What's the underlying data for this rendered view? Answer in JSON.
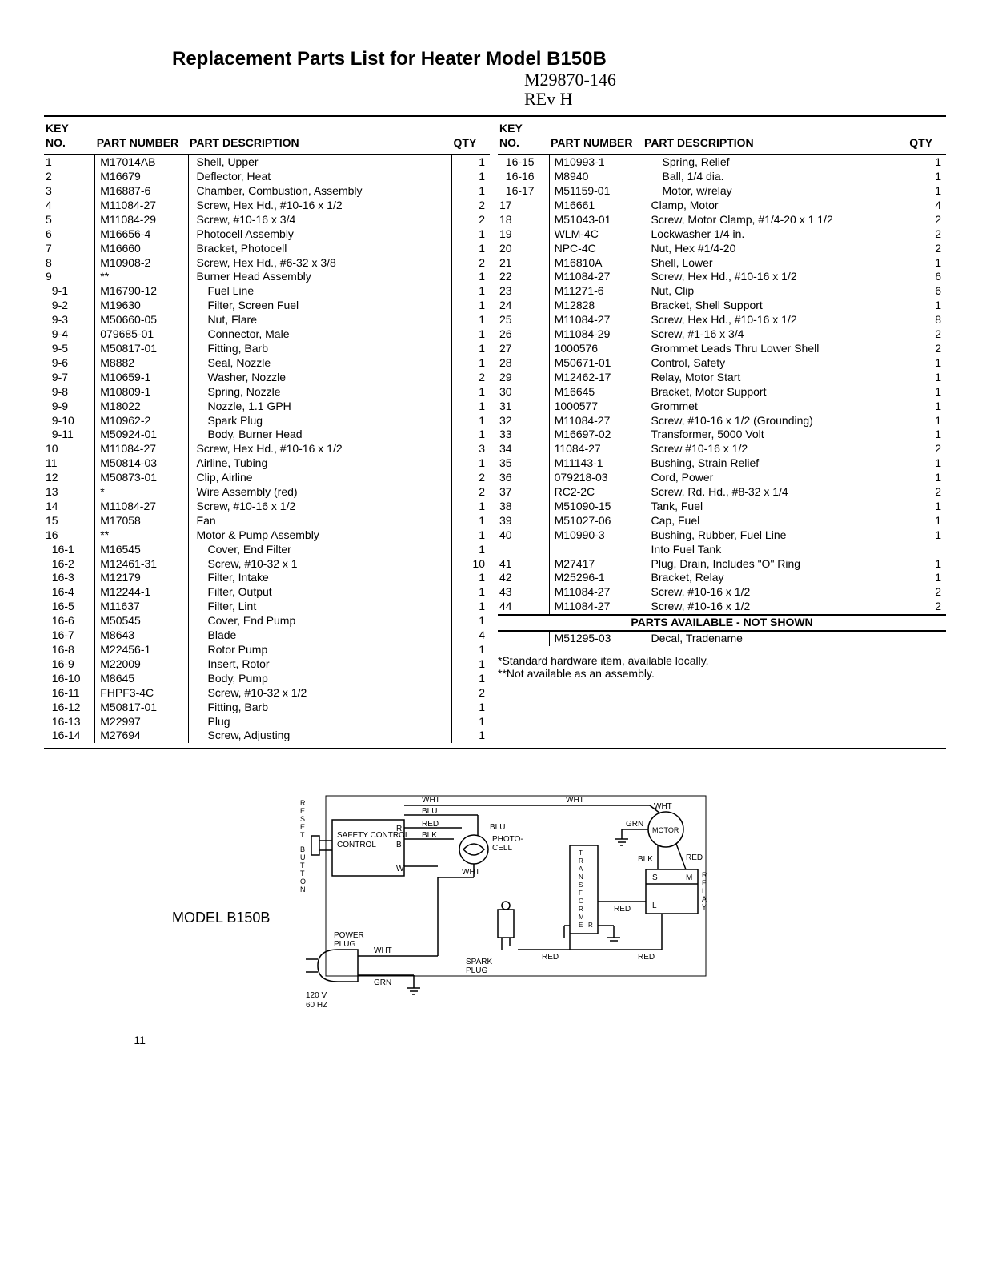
{
  "title": "Replacement Parts List for Heater Model B150B",
  "handwritten_line1": "M29870-146",
  "handwritten_line2": "REv H",
  "headers": {
    "key": "KEY\nNO.",
    "pn": "PART NUMBER",
    "desc": "PART DESCRIPTION",
    "qty": "QTY"
  },
  "left": [
    {
      "k": "1",
      "p": "M17014AB",
      "d": "Shell, Upper",
      "q": "1"
    },
    {
      "k": "2",
      "p": "M16679",
      "d": "Deflector, Heat",
      "q": "1"
    },
    {
      "k": "3",
      "p": "M16887-6",
      "d": "Chamber, Combustion, Assembly",
      "q": "1"
    },
    {
      "k": "4",
      "p": "M11084-27",
      "d": "Screw, Hex Hd., #10-16 x 1/2",
      "q": "2"
    },
    {
      "k": "5",
      "p": "M11084-29",
      "d": "Screw, #10-16 x 3/4",
      "q": "2"
    },
    {
      "k": "6",
      "p": "M16656-4",
      "d": "Photocell Assembly",
      "q": "1"
    },
    {
      "k": "7",
      "p": "M16660",
      "d": "Bracket, Photocell",
      "q": "1"
    },
    {
      "k": "8",
      "p": "M10908-2",
      "d": "Screw, Hex Hd., #6-32 x 3/8",
      "q": "2"
    },
    {
      "k": "9",
      "p": "**",
      "d": "Burner Head Assembly",
      "q": "1"
    },
    {
      "k": "9-1",
      "p": "M16790-12",
      "d": "Fuel Line",
      "q": "1",
      "i": 1
    },
    {
      "k": "9-2",
      "p": "M19630",
      "d": "Filter, Screen Fuel",
      "q": "1",
      "i": 1
    },
    {
      "k": "9-3",
      "p": "M50660-05",
      "d": "Nut, Flare",
      "q": "1",
      "i": 1
    },
    {
      "k": "9-4",
      "p": "079685-01",
      "d": "Connector, Male",
      "q": "1",
      "i": 1
    },
    {
      "k": "9-5",
      "p": "M50817-01",
      "d": "Fitting, Barb",
      "q": "1",
      "i": 1
    },
    {
      "k": "9-6",
      "p": "M8882",
      "d": "Seal, Nozzle",
      "q": "1",
      "i": 1
    },
    {
      "k": "9-7",
      "p": "M10659-1",
      "d": "Washer, Nozzle",
      "q": "2",
      "i": 1
    },
    {
      "k": "9-8",
      "p": "M10809-1",
      "d": "Spring, Nozzle",
      "q": "1",
      "i": 1
    },
    {
      "k": "9-9",
      "p": "M18022",
      "d": "Nozzle, 1.1 GPH",
      "q": "1",
      "i": 1
    },
    {
      "k": "9-10",
      "p": "M10962-2",
      "d": "Spark Plug",
      "q": "1",
      "i": 1
    },
    {
      "k": "9-11",
      "p": "M50924-01",
      "d": "Body, Burner Head",
      "q": "1",
      "i": 1
    },
    {
      "k": "10",
      "p": "M11084-27",
      "d": "Screw, Hex Hd., #10-16 x 1/2",
      "q": "3"
    },
    {
      "k": "11",
      "p": "M50814-03",
      "d": "Airline, Tubing",
      "q": "1"
    },
    {
      "k": "12",
      "p": "M50873-01",
      "d": "Clip, Airline",
      "q": "2"
    },
    {
      "k": "13",
      "p": "*",
      "d": "Wire Assembly (red)",
      "q": "2"
    },
    {
      "k": "14",
      "p": "M11084-27",
      "d": "Screw, #10-16 x 1/2",
      "q": "1"
    },
    {
      "k": "15",
      "p": "M17058",
      "d": "Fan",
      "q": "1"
    },
    {
      "k": "16",
      "p": "**",
      "d": "Motor & Pump Assembly",
      "q": "1"
    },
    {
      "k": "16-1",
      "p": "M16545",
      "d": "Cover, End Filter",
      "q": "1",
      "i": 1
    },
    {
      "k": "16-2",
      "p": "M12461-31",
      "d": "Screw, #10-32 x 1",
      "q": "10",
      "i": 1
    },
    {
      "k": "16-3",
      "p": "M12179",
      "d": "Filter, Intake",
      "q": "1",
      "i": 1
    },
    {
      "k": "16-4",
      "p": "M12244-1",
      "d": "Filter, Output",
      "q": "1",
      "i": 1
    },
    {
      "k": "16-5",
      "p": "M11637",
      "d": "Filter, Lint",
      "q": "1",
      "i": 1
    },
    {
      "k": "16-6",
      "p": "M50545",
      "d": "Cover, End Pump",
      "q": "1",
      "i": 1
    },
    {
      "k": "16-7",
      "p": "M8643",
      "d": "Blade",
      "q": "4",
      "i": 1
    },
    {
      "k": "16-8",
      "p": "M22456-1",
      "d": "Rotor Pump",
      "q": "1",
      "i": 1
    },
    {
      "k": "16-9",
      "p": "M22009",
      "d": "Insert, Rotor",
      "q": "1",
      "i": 1
    },
    {
      "k": "16-10",
      "p": "M8645",
      "d": "Body, Pump",
      "q": "1",
      "i": 1
    },
    {
      "k": "16-11",
      "p": "FHPF3-4C",
      "d": "Screw, #10-32 x 1/2",
      "q": "2",
      "i": 1
    },
    {
      "k": "16-12",
      "p": "M50817-01",
      "d": "Fitting, Barb",
      "q": "1",
      "i": 1
    },
    {
      "k": "16-13",
      "p": "M22997",
      "d": "Plug",
      "q": "1",
      "i": 1
    },
    {
      "k": "16-14",
      "p": "M27694",
      "d": "Screw, Adjusting",
      "q": "1",
      "i": 1
    }
  ],
  "right": [
    {
      "k": "16-15",
      "p": "M10993-1",
      "d": "Spring, Relief",
      "q": "1",
      "i": 1
    },
    {
      "k": "16-16",
      "p": "M8940",
      "d": "Ball, 1/4 dia.",
      "q": "1",
      "i": 1
    },
    {
      "k": "16-17",
      "p": "M51159-01",
      "d": "Motor, w/relay",
      "q": "1",
      "i": 1
    },
    {
      "k": "17",
      "p": "M16661",
      "d": "Clamp, Motor",
      "q": "4"
    },
    {
      "k": "18",
      "p": "M51043-01",
      "d": "Screw, Motor Clamp, #1/4-20 x 1 1/2",
      "q": "2"
    },
    {
      "k": "19",
      "p": "WLM-4C",
      "d": "Lockwasher 1/4 in.",
      "q": "2"
    },
    {
      "k": "20",
      "p": "NPC-4C",
      "d": "Nut, Hex #1/4-20",
      "q": "2"
    },
    {
      "k": "21",
      "p": "M16810A",
      "d": "Shell, Lower",
      "q": "1"
    },
    {
      "k": "22",
      "p": "M11084-27",
      "d": "Screw, Hex Hd., #10-16 x 1/2",
      "q": "6"
    },
    {
      "k": "23",
      "p": "M11271-6",
      "d": "Nut, Clip",
      "q": "6"
    },
    {
      "k": "24",
      "p": "M12828",
      "d": "Bracket, Shell Support",
      "q": "1"
    },
    {
      "k": "25",
      "p": "M11084-27",
      "d": "Screw, Hex Hd., #10-16 x 1/2",
      "q": "8"
    },
    {
      "k": "26",
      "p": "M11084-29",
      "d": "Screw, #1-16 x 3/4",
      "q": "2"
    },
    {
      "k": "27",
      "p": "1000576",
      "d": "Grommet Leads Thru Lower Shell",
      "q": "2"
    },
    {
      "k": "28",
      "p": "M50671-01",
      "d": "Control, Safety",
      "q": "1"
    },
    {
      "k": "29",
      "p": "M12462-17",
      "d": "Relay, Motor Start",
      "q": "1"
    },
    {
      "k": "30",
      "p": "M16645",
      "d": "Bracket, Motor Support",
      "q": "1"
    },
    {
      "k": "31",
      "p": "1000577",
      "d": "Grommet",
      "q": "1"
    },
    {
      "k": "32",
      "p": "M11084-27",
      "d": "Screw, #10-16 x 1/2 (Grounding)",
      "q": "1"
    },
    {
      "k": "33",
      "p": "M16697-02",
      "d": "Transformer, 5000 Volt",
      "q": "1"
    },
    {
      "k": "34",
      "p": "11084-27",
      "d": "Screw #10-16 x 1/2",
      "q": "2"
    },
    {
      "k": "35",
      "p": "M11143-1",
      "d": "Bushing, Strain Relief",
      "q": "1"
    },
    {
      "k": "36",
      "p": "079218-03",
      "d": "Cord, Power",
      "q": "1"
    },
    {
      "k": "37",
      "p": "RC2-2C",
      "d": "Screw, Rd. Hd., #8-32 x 1/4",
      "q": "2"
    },
    {
      "k": "38",
      "p": "M51090-15",
      "d": "Tank, Fuel",
      "q": "1"
    },
    {
      "k": "39",
      "p": "M51027-06",
      "d": "Cap, Fuel",
      "q": "1"
    },
    {
      "k": "40",
      "p": "M10990-3",
      "d": "Bushing, Rubber, Fuel Line",
      "q": "1"
    },
    {
      "k": "",
      "p": "",
      "d": "Into Fuel Tank",
      "q": ""
    },
    {
      "k": "41",
      "p": "M27417",
      "d": "Plug, Drain, Includes \"O\" Ring",
      "q": "1"
    },
    {
      "k": "42",
      "p": "M25296-1",
      "d": "Bracket, Relay",
      "q": "1"
    },
    {
      "k": "43",
      "p": "M11084-27",
      "d": "Screw, #10-16 x 1/2",
      "q": "2"
    },
    {
      "k": "44",
      "p": "M11084-27",
      "d": "Screw, #10-16 x 1/2",
      "q": "2"
    }
  ],
  "not_shown_header": "PARTS AVAILABLE - NOT SHOWN",
  "not_shown": [
    {
      "k": "",
      "p": "M51295-03",
      "d": "Decal, Tradename",
      "q": ""
    }
  ],
  "footnote1": "*Standard hardware item, available locally.",
  "footnote2": "**Not available as an assembly.",
  "model_label": "MODEL B150B",
  "page_number": "11",
  "schematic": {
    "labels": {
      "reset": "RESET BUTTON",
      "safety": "SAFETY CONTROL",
      "power": "POWER PLUG",
      "voltage": "120 V",
      "hz": "60 HZ",
      "photo": "PHOTO-CELL",
      "spark": "SPARK PLUG",
      "trans": "TRANSFORMER",
      "motor": "MOTOR",
      "relay": "RELAY",
      "wht": "WHT",
      "blu": "BLU",
      "red": "RED",
      "blk": "BLK",
      "grn": "GRN",
      "r": "R",
      "b": "B",
      "w": "W",
      "s": "S",
      "m": "M",
      "l": "L"
    }
  }
}
